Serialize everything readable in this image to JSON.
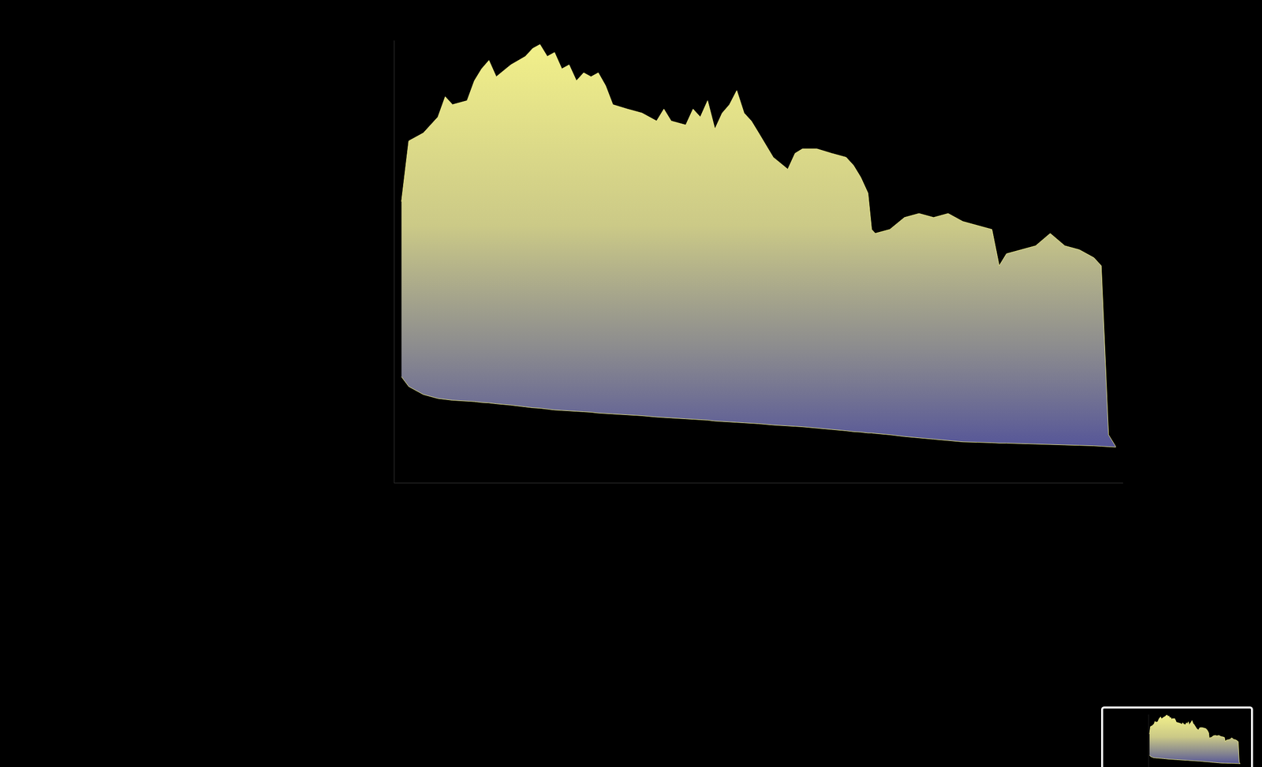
{
  "chart_data": {
    "type": "area",
    "x": [
      1,
      2,
      4,
      6,
      7,
      8,
      10,
      11,
      12,
      13,
      14,
      16,
      18,
      19,
      20,
      21,
      22,
      23,
      24,
      25,
      26,
      27,
      28,
      29,
      30,
      32,
      34,
      36,
      37,
      38,
      40,
      41,
      42,
      43,
      44,
      45,
      46,
      47,
      48,
      49,
      50,
      52,
      54,
      55,
      56,
      58,
      60,
      62,
      63,
      64,
      65,
      65.5,
      66,
      68,
      70,
      72,
      74,
      76,
      78,
      80,
      82,
      83,
      84,
      86,
      88,
      90,
      92,
      94,
      96,
      97,
      98,
      99
    ],
    "series": [
      {
        "color": "#f2f08a",
        "values": [
          63.6,
          77.3,
          79.1,
          82.7,
          87.3,
          85.5,
          86.4,
          90.9,
          93.6,
          95.5,
          91.8,
          94.5,
          96.4,
          98.2,
          99.1,
          96.4,
          97.3,
          93.6,
          94.5,
          90.9,
          92.7,
          91.8,
          92.7,
          89.8,
          85.5,
          84.5,
          83.6,
          81.8,
          84.5,
          81.8,
          80.9,
          84.5,
          82.7,
          86.4,
          80,
          83.6,
          85.5,
          88.7,
          83.6,
          81.8,
          79.1,
          73.6,
          70.9,
          74.5,
          75.5,
          75.5,
          74.5,
          73.6,
          71.8,
          69.1,
          65.5,
          57.3,
          56.4,
          57.3,
          60,
          60.9,
          60,
          60.9,
          59.1,
          58.2,
          57.3,
          49.1,
          51.8,
          52.7,
          53.6,
          56.4,
          53.6,
          52.7,
          50.9,
          49.1,
          10.9,
          8.2
        ],
        "lower": [
          24,
          21.8,
          20,
          19.1,
          18.9,
          18.7,
          18.5,
          18.4,
          18.2,
          18.1,
          17.9,
          17.6,
          17.2,
          17,
          16.9,
          16.7,
          16.5,
          16.4,
          16.3,
          16.2,
          16.1,
          16,
          15.8,
          15.7,
          15.6,
          15.4,
          15.2,
          14.9,
          14.8,
          14.7,
          14.5,
          14.4,
          14.3,
          14.2,
          14,
          13.9,
          13.8,
          13.7,
          13.6,
          13.5,
          13.4,
          13.1,
          12.9,
          12.8,
          12.7,
          12.4,
          12.1,
          11.8,
          11.6,
          11.5,
          11.3,
          11.3,
          11.2,
          10.9,
          10.5,
          10.2,
          9.9,
          9.6,
          9.3,
          9.2,
          9.1,
          9,
          9,
          8.9,
          8.8,
          8.7,
          8.6,
          8.5,
          8.4,
          8.3,
          8.2,
          8.1
        ]
      }
    ],
    "xlim": [
      0,
      100
    ],
    "ylim": [
      0,
      100
    ],
    "xticks": [],
    "yticks": [],
    "tick_labels": false
  }
}
